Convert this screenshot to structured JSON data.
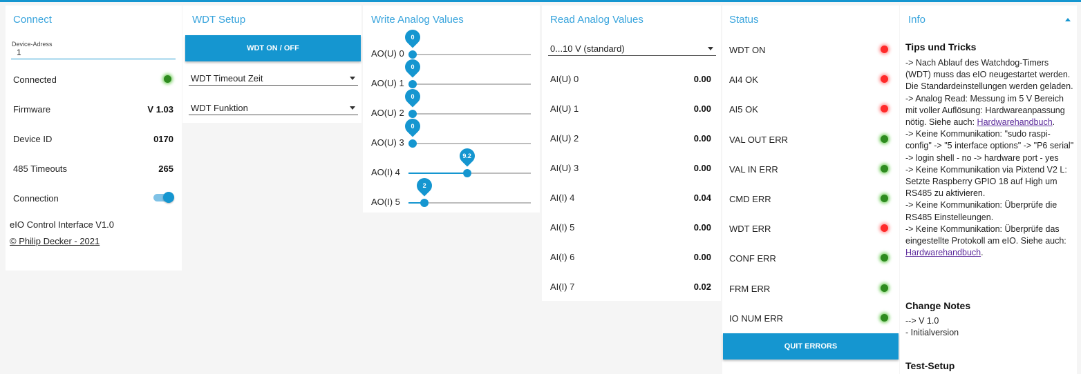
{
  "connect": {
    "title": "Connect",
    "device_address_label": "Device-Adress",
    "device_address_value": "1",
    "rows": [
      {
        "label": "Connected",
        "value": ""
      },
      {
        "label": "Firmware",
        "value": "V 1.03"
      },
      {
        "label": "Device ID",
        "value": "0170"
      },
      {
        "label": "485 Timeouts",
        "value": "265"
      },
      {
        "label": "Connection",
        "value": ""
      }
    ],
    "connected_led": "green",
    "connection_toggle": "on",
    "footer_title": "eIO Control Interface V1.0",
    "footer_link": "© Philip Decker - 2021"
  },
  "wdt": {
    "title": "WDT Setup",
    "button_label": "WDT ON / OFF",
    "timeout_select": "WDT Timeout Zeit",
    "function_select": "WDT Funktion"
  },
  "write": {
    "title": "Write Analog Values",
    "sliders": [
      {
        "label": "AO(U) 0",
        "value": "0",
        "fraction": 0.0
      },
      {
        "label": "AO(U) 1",
        "value": "0",
        "fraction": 0.0
      },
      {
        "label": "AO(U) 2",
        "value": "0",
        "fraction": 0.0
      },
      {
        "label": "AO(U) 3",
        "value": "0",
        "fraction": 0.0
      },
      {
        "label": "AO(I) 4",
        "value": "9.2",
        "fraction": 0.46
      },
      {
        "label": "AO(I) 5",
        "value": "2",
        "fraction": 0.1
      }
    ]
  },
  "read": {
    "title": "Read Analog Values",
    "range_select": "0...10 V (standard)",
    "rows": [
      {
        "label": "AI(U) 0",
        "value": "0.00"
      },
      {
        "label": "AI(U) 1",
        "value": "0.00"
      },
      {
        "label": "AI(U) 2",
        "value": "0.00"
      },
      {
        "label": "AI(U) 3",
        "value": "0.00"
      },
      {
        "label": "AI(I) 4",
        "value": "0.04"
      },
      {
        "label": "AI(I) 5",
        "value": "0.00"
      },
      {
        "label": "AI(I) 6",
        "value": "0.00"
      },
      {
        "label": "AI(I) 7",
        "value": "0.02"
      }
    ]
  },
  "status": {
    "title": "Status",
    "items": [
      {
        "label": "WDT ON",
        "state": "red"
      },
      {
        "label": "AI4 OK",
        "state": "red"
      },
      {
        "label": "AI5 OK",
        "state": "red"
      },
      {
        "label": "VAL OUT ERR",
        "state": "green"
      },
      {
        "label": "VAL IN ERR",
        "state": "green"
      },
      {
        "label": "CMD ERR",
        "state": "green"
      },
      {
        "label": "WDT ERR",
        "state": "red"
      },
      {
        "label": "CONF ERR",
        "state": "green"
      },
      {
        "label": "FRM ERR",
        "state": "green"
      },
      {
        "label": "IO NUM ERR",
        "state": "green"
      }
    ],
    "quit_button": "QUIT ERRORS"
  },
  "info": {
    "title": "Info",
    "tips_heading": "Tips und Tricks",
    "tip1_a": "-> Nach Ablauf des Watchdog-Timers (WDT) muss das eIO neugestartet werden. Die Standardeinstellungen werden geladen.",
    "tip2_a": "-> Analog Read: Messung im 5 V Bereich mit voller Auflösung: Hardwareanpassung nötig. Siehe auch: ",
    "tip2_link": "Hardwarehandbuch",
    "tip2_b": ".",
    "tip3": "-> Keine Kommunikation: \"sudo raspi-config\" -> \"5 interface options\" -> \"P6 serial\" -> login shell - no -> hardware port - yes",
    "tip4": "-> Keine Kommunikation via Pixtend V2 L: Setzte Raspberry GPIO 18 auf High um RS485 zu aktivieren.",
    "tip5": "-> Keine Kommunikation: Überprüfe die RS485 Einstelleungen.",
    "tip6_a": "-> Keine Kommunikation: Überprüfe das eingestellte Protokoll am eIO. Siehe auch: ",
    "tip6_link": "Hardwarehandbuch",
    "tip6_b": ".",
    "change_heading": "Change Notes",
    "change_line1": "--> V 1.0",
    "change_line2": "- Initialversion",
    "test_heading": "Test-Setup"
  },
  "colors": {
    "accent": "#1596d0",
    "title": "#36a3dc",
    "led_green": "#2e8b1f",
    "led_red": "#ff2a2a",
    "link": "#5c2b9b"
  }
}
